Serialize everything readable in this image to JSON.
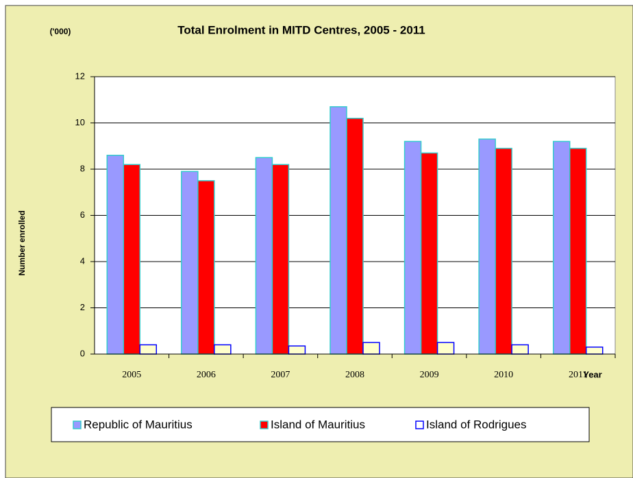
{
  "chart_data": {
    "type": "bar",
    "title": "Total Enrolment in MITD Centres, 2005 - 2011",
    "unit_label": "('000)",
    "x_label": "Year",
    "y_label": "Number enrolled",
    "categories": [
      "2005",
      "2006",
      "2007",
      "2008",
      "2009",
      "2010",
      "2011"
    ],
    "series": [
      {
        "name": "Republic of Mauritius",
        "color": "#9999ff",
        "values": [
          8.6,
          7.9,
          8.5,
          10.7,
          9.2,
          9.3,
          9.2
        ]
      },
      {
        "name": "Island of Mauritius",
        "color": "#ff0000",
        "values": [
          8.2,
          7.5,
          8.2,
          10.2,
          8.7,
          8.9,
          8.9
        ]
      },
      {
        "name": "Island of Rodrigues",
        "color": "#ffffcc",
        "values": [
          0.4,
          0.4,
          0.35,
          0.5,
          0.5,
          0.4,
          0.3
        ]
      }
    ],
    "ylim": [
      0,
      12
    ],
    "yticks": [
      0,
      2,
      4,
      6,
      8,
      10,
      12
    ],
    "grid": true,
    "legend": "bottom"
  }
}
